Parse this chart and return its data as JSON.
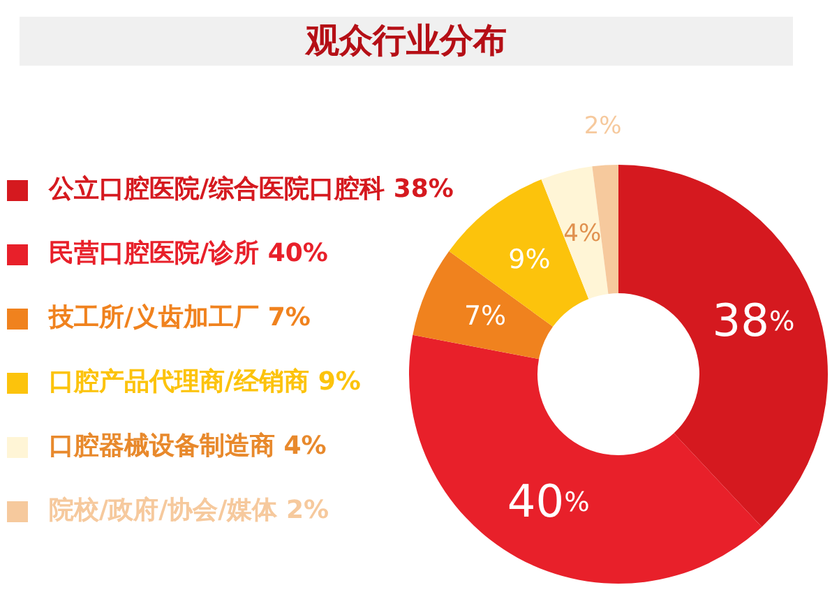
{
  "chart_data": {
    "type": "donut",
    "title": "观众行业分布",
    "categories": [
      "公立口腔医院/综合医院口腔科",
      "民营口腔医院/诊所",
      "技工所/义齿加工厂",
      "口腔产品代理商/经销商",
      "口腔器械设备制造商",
      "院校/政府/协会/媒体"
    ],
    "values": [
      38,
      40,
      7,
      9,
      4,
      2
    ],
    "value_labels": [
      "38%",
      "40%",
      "7%",
      "9%",
      "4%",
      "2%"
    ],
    "colors": [
      "#d5191f",
      "#e8202a",
      "#f0821e",
      "#fcc30c",
      "#fff5d6",
      "#f6c99d"
    ],
    "legend": "left"
  }
}
